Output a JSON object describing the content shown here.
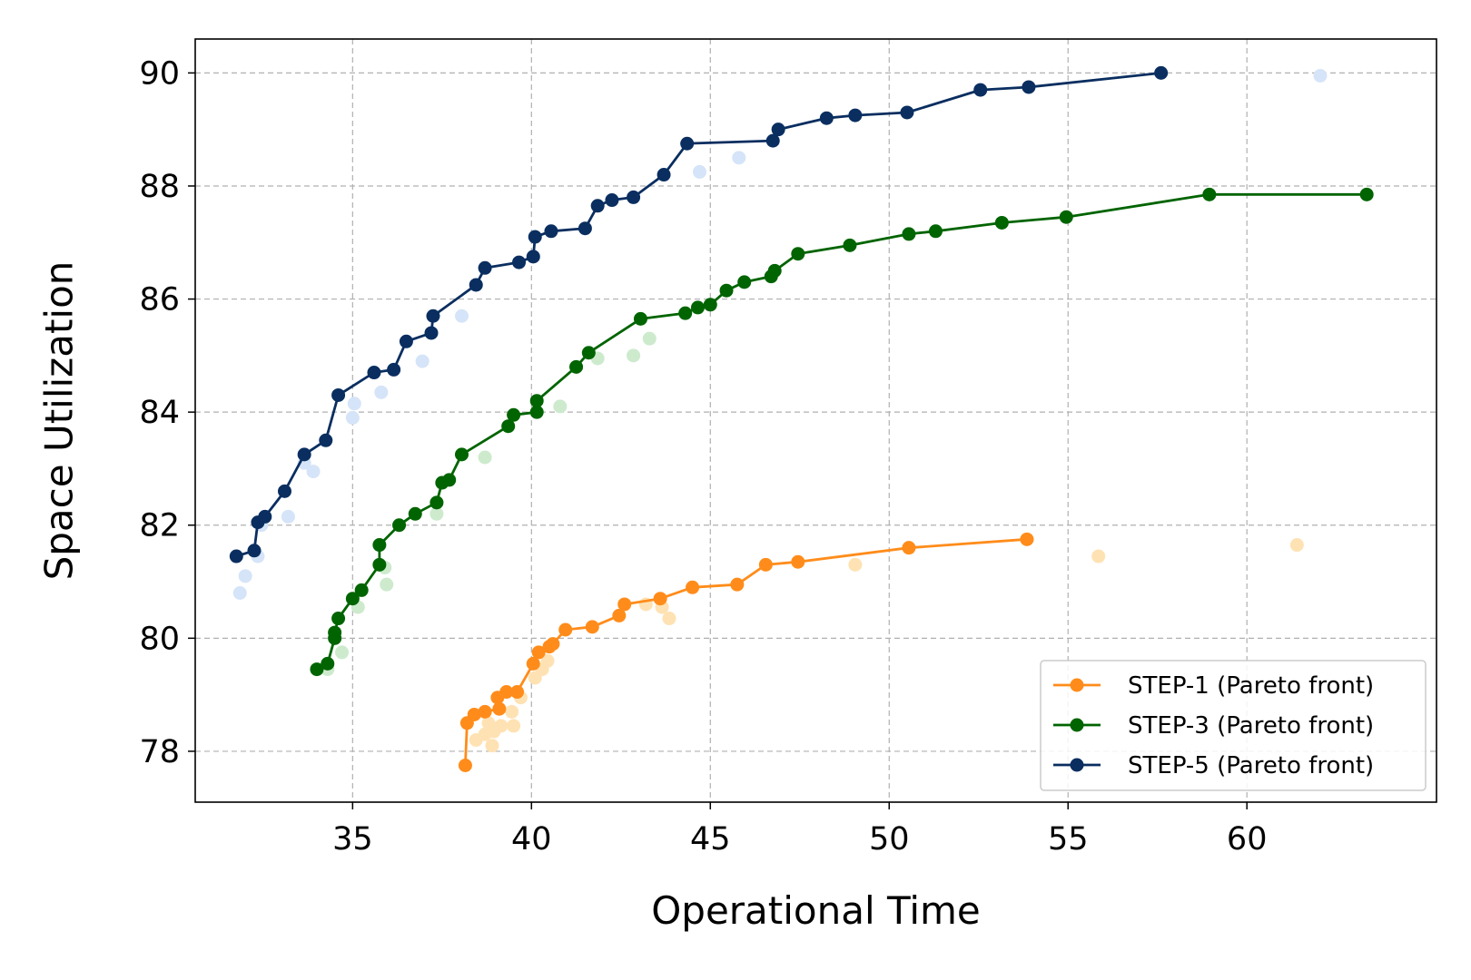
{
  "chart_data": {
    "type": "scatter",
    "title": "",
    "xlabel": "Operational Time",
    "ylabel": "Space Utilization",
    "xlim": [
      30.6,
      65.3
    ],
    "ylim": [
      77.1,
      90.6
    ],
    "xticks": [
      35,
      40,
      45,
      50,
      55,
      60
    ],
    "yticks": [
      78,
      80,
      82,
      84,
      86,
      88,
      90
    ],
    "grid": true,
    "legend_position": "lower-right",
    "series": [
      {
        "name": "STEP-1 (Pareto front)",
        "color": "#ff8c1a",
        "faint_color": "#ffe2b3",
        "front": [
          [
            38.15,
            77.75
          ],
          [
            38.2,
            78.5
          ],
          [
            38.4,
            78.65
          ],
          [
            38.7,
            78.7
          ],
          [
            39.1,
            78.75
          ],
          [
            39.05,
            78.95
          ],
          [
            39.3,
            79.05
          ],
          [
            39.6,
            79.05
          ],
          [
            40.05,
            79.55
          ],
          [
            40.2,
            79.75
          ],
          [
            40.5,
            79.85
          ],
          [
            40.6,
            79.9
          ],
          [
            40.95,
            80.15
          ],
          [
            41.7,
            80.2
          ],
          [
            42.45,
            80.4
          ],
          [
            42.6,
            80.6
          ],
          [
            43.6,
            80.7
          ],
          [
            44.5,
            80.9
          ],
          [
            45.75,
            80.95
          ],
          [
            46.55,
            81.3
          ],
          [
            47.45,
            81.35
          ],
          [
            50.55,
            81.6
          ],
          [
            53.85,
            81.75
          ]
        ],
        "others": [
          [
            38.45,
            78.2
          ],
          [
            38.7,
            78.3
          ],
          [
            38.9,
            78.1
          ],
          [
            38.95,
            78.35
          ],
          [
            39.15,
            78.45
          ],
          [
            38.8,
            78.5
          ],
          [
            39.45,
            78.7
          ],
          [
            39.5,
            78.45
          ],
          [
            39.7,
            78.95
          ],
          [
            40.1,
            79.3
          ],
          [
            40.3,
            79.45
          ],
          [
            40.45,
            79.6
          ],
          [
            43.2,
            80.6
          ],
          [
            43.65,
            80.55
          ],
          [
            43.85,
            80.35
          ],
          [
            49.05,
            81.3
          ],
          [
            55.85,
            81.45
          ],
          [
            61.4,
            81.65
          ]
        ]
      },
      {
        "name": "STEP-3 (Pareto front)",
        "color": "#006400",
        "faint_color": "#cdeacd",
        "front": [
          [
            34.0,
            79.45
          ],
          [
            34.3,
            79.55
          ],
          [
            34.5,
            80.0
          ],
          [
            34.5,
            80.1
          ],
          [
            34.6,
            80.35
          ],
          [
            35.0,
            80.7
          ],
          [
            35.25,
            80.85
          ],
          [
            35.75,
            81.3
          ],
          [
            35.75,
            81.65
          ],
          [
            36.3,
            82.0
          ],
          [
            36.75,
            82.2
          ],
          [
            37.35,
            82.4
          ],
          [
            37.5,
            82.75
          ],
          [
            37.7,
            82.8
          ],
          [
            38.05,
            83.25
          ],
          [
            39.35,
            83.75
          ],
          [
            39.5,
            83.95
          ],
          [
            40.15,
            84.0
          ],
          [
            40.15,
            84.2
          ],
          [
            41.25,
            84.8
          ],
          [
            41.6,
            85.05
          ],
          [
            43.05,
            85.65
          ],
          [
            44.3,
            85.75
          ],
          [
            44.65,
            85.85
          ],
          [
            45.0,
            85.9
          ],
          [
            45.45,
            86.15
          ],
          [
            45.95,
            86.3
          ],
          [
            46.7,
            86.4
          ],
          [
            46.8,
            86.5
          ],
          [
            47.45,
            86.8
          ],
          [
            48.9,
            86.95
          ],
          [
            50.55,
            87.15
          ],
          [
            51.3,
            87.2
          ],
          [
            53.15,
            87.35
          ],
          [
            54.95,
            87.45
          ],
          [
            58.95,
            87.85
          ],
          [
            63.35,
            87.85
          ]
        ],
        "others": [
          [
            34.3,
            79.45
          ],
          [
            34.7,
            79.75
          ],
          [
            35.15,
            80.55
          ],
          [
            35.95,
            80.95
          ],
          [
            35.9,
            81.25
          ],
          [
            37.35,
            82.2
          ],
          [
            38.7,
            83.2
          ],
          [
            40.8,
            84.1
          ],
          [
            41.85,
            84.95
          ],
          [
            42.85,
            85.0
          ],
          [
            43.3,
            85.3
          ]
        ]
      },
      {
        "name": "STEP-5 (Pareto front)",
        "color": "#0a2e60",
        "faint_color": "#d5e4f8",
        "front": [
          [
            31.75,
            81.45
          ],
          [
            32.25,
            81.55
          ],
          [
            32.35,
            82.05
          ],
          [
            32.55,
            82.15
          ],
          [
            33.1,
            82.6
          ],
          [
            33.65,
            83.25
          ],
          [
            34.25,
            83.5
          ],
          [
            34.6,
            84.3
          ],
          [
            35.6,
            84.7
          ],
          [
            36.15,
            84.75
          ],
          [
            36.5,
            85.25
          ],
          [
            37.2,
            85.4
          ],
          [
            37.25,
            85.7
          ],
          [
            38.45,
            86.25
          ],
          [
            38.7,
            86.55
          ],
          [
            39.65,
            86.65
          ],
          [
            40.05,
            86.75
          ],
          [
            40.1,
            87.1
          ],
          [
            40.55,
            87.2
          ],
          [
            41.5,
            87.25
          ],
          [
            41.85,
            87.65
          ],
          [
            42.25,
            87.75
          ],
          [
            42.85,
            87.8
          ],
          [
            43.7,
            88.2
          ],
          [
            44.35,
            88.75
          ],
          [
            46.75,
            88.8
          ],
          [
            46.9,
            89.0
          ],
          [
            48.25,
            89.2
          ],
          [
            49.05,
            89.25
          ],
          [
            50.5,
            89.3
          ],
          [
            52.55,
            89.7
          ],
          [
            53.9,
            89.75
          ],
          [
            57.6,
            90.0
          ]
        ],
        "others": [
          [
            31.85,
            80.8
          ],
          [
            32.0,
            81.1
          ],
          [
            32.35,
            81.45
          ],
          [
            32.45,
            82.0
          ],
          [
            33.2,
            82.15
          ],
          [
            33.65,
            83.1
          ],
          [
            33.9,
            82.95
          ],
          [
            35.0,
            83.9
          ],
          [
            35.05,
            84.15
          ],
          [
            35.8,
            84.35
          ],
          [
            36.95,
            84.9
          ],
          [
            38.05,
            85.7
          ],
          [
            44.7,
            88.25
          ],
          [
            45.8,
            88.5
          ],
          [
            62.05,
            89.95
          ]
        ]
      }
    ]
  }
}
